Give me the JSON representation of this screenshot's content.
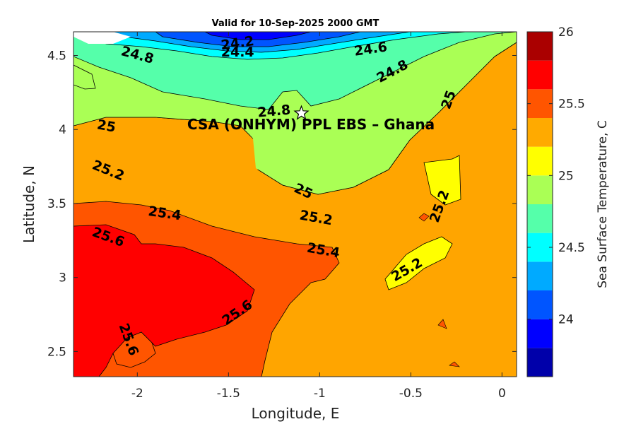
{
  "chart_data": {
    "type": "contour",
    "title": "Valid for 10-Sep-2025 2000 GMT",
    "xlabel": "Longitude, E",
    "ylabel": "Latitude, N",
    "xlim": [
      -2.35,
      0.08
    ],
    "ylim": [
      2.33,
      4.66
    ],
    "xticks": [
      -2,
      -1.5,
      -1,
      -0.5,
      0
    ],
    "xtick_labels": [
      "-2",
      "-1.5",
      "-1",
      "-0.5",
      "0"
    ],
    "yticks": [
      2.5,
      3,
      3.5,
      4,
      4.5
    ],
    "ytick_labels": [
      "2.5",
      "3",
      "3.5",
      "4",
      "4.5"
    ],
    "annotation": {
      "text": "CSA (ONHYM) PPL EBS  – Ghana",
      "marker": "star",
      "lon": -1.1,
      "lat": 4.11
    },
    "colorbar": {
      "label": "Sea Surface Temperature, C",
      "range": [
        23.6,
        26.0
      ],
      "step": 0.2,
      "ticks": [
        24,
        24.5,
        25,
        25.5,
        26
      ],
      "tick_labels": [
        "24",
        "24.5",
        "25",
        "25.5",
        "26"
      ],
      "colors": [
        "#0000aa",
        "#0000ff",
        "#0055ff",
        "#00aaff",
        "#00ffff",
        "#55ffaa",
        "#aaff55",
        "#ffff00",
        "#ffaa00",
        "#ff5500",
        "#ff0000",
        "#aa0000"
      ]
    },
    "contour_labels": [
      {
        "text": "24.2",
        "lon": -1.45,
        "lat": 4.58
      },
      {
        "text": "24.4",
        "lon": -1.45,
        "lat": 4.52
      },
      {
        "text": "24.6",
        "lon": -0.72,
        "lat": 4.54
      },
      {
        "text": "24.8",
        "lon": -2.0,
        "lat": 4.5
      },
      {
        "text": "24.8",
        "lon": -0.6,
        "lat": 4.39
      },
      {
        "text": "24.8",
        "lon": -1.25,
        "lat": 4.12
      },
      {
        "text": "25",
        "lon": -2.17,
        "lat": 4.02
      },
      {
        "text": "25",
        "lon": -0.29,
        "lat": 4.2
      },
      {
        "text": "25",
        "lon": -1.09,
        "lat": 3.58
      },
      {
        "text": "25.2",
        "lon": -2.16,
        "lat": 3.72
      },
      {
        "text": "25.2",
        "lon": -1.02,
        "lat": 3.4
      },
      {
        "text": "25.2",
        "lon": -0.34,
        "lat": 3.48
      },
      {
        "text": "25.2",
        "lon": -0.52,
        "lat": 3.05
      },
      {
        "text": "25.4",
        "lon": -1.85,
        "lat": 3.43
      },
      {
        "text": "25.4",
        "lon": -0.98,
        "lat": 3.18
      },
      {
        "text": "25.6",
        "lon": -2.16,
        "lat": 3.27
      },
      {
        "text": "25.6",
        "lon": -1.45,
        "lat": 2.76
      },
      {
        "text": "25.6",
        "lon": -2.05,
        "lat": 2.58
      }
    ]
  }
}
